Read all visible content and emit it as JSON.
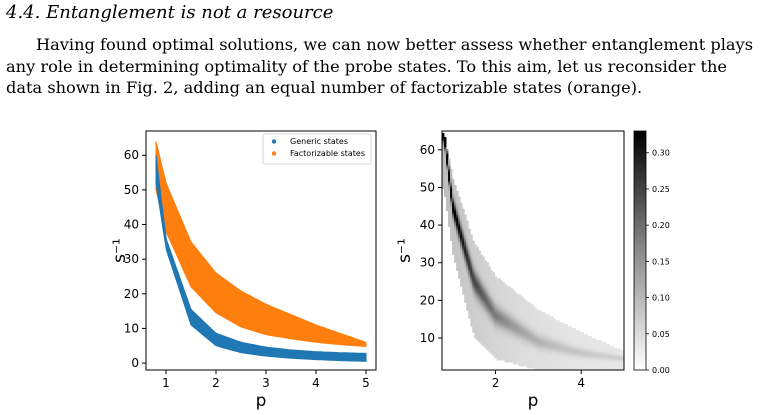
{
  "heading": {
    "number": "4.4.",
    "title": "Entanglement is not a resource"
  },
  "paragraph": {
    "lines": [
      "Having found optimal solutions, we can now better assess whether entanglement plays",
      "any role in determining optimality of the probe states. To this aim, let us reconsider the",
      "data shown in Fig. 2, adding an equal number of factorizable states (orange)."
    ]
  },
  "colors": {
    "generic": "#1f77b4",
    "factorizable": "#ff7f0e"
  },
  "chart_data": [
    {
      "type": "area",
      "title": "",
      "xlabel": "p",
      "ylabel": "s⁻¹",
      "xlim": [
        0.6,
        5.2
      ],
      "ylim": [
        -2,
        67
      ],
      "xticks": [
        "1",
        "2",
        "3",
        "4",
        "5"
      ],
      "yticks": [
        "0",
        "10",
        "20",
        "30",
        "40",
        "50",
        "60"
      ],
      "grid": false,
      "legend_position": "top-right",
      "x_range": [
        0.8,
        5.0
      ],
      "series": [
        {
          "name": "Factorizable states",
          "color": "#ff7f0e",
          "x": [
            0.8,
            1.0,
            1.5,
            2.0,
            2.5,
            3.0,
            3.5,
            4.0,
            4.5,
            5.0
          ],
          "lower": [
            50.0,
            38.0,
            22.0,
            14.5,
            10.4,
            8.2,
            7.0,
            6.0,
            5.3,
            4.8
          ],
          "upper": [
            64.0,
            52.0,
            35.0,
            26.0,
            20.8,
            17.0,
            14.0,
            11.0,
            8.5,
            6.0
          ]
        },
        {
          "name": "Generic states",
          "color": "#1f77b4",
          "x": [
            0.8,
            1.0,
            1.5,
            2.0,
            2.5,
            3.0,
            3.5,
            4.0,
            4.5,
            5.0
          ],
          "lower": [
            52.0,
            33.0,
            11.0,
            5.0,
            3.0,
            2.0,
            1.4,
            1.0,
            0.7,
            0.5
          ],
          "upper": [
            60.0,
            36.0,
            15.5,
            8.6,
            6.0,
            4.6,
            3.8,
            3.3,
            3.0,
            2.8
          ]
        }
      ]
    },
    {
      "type": "heatmap",
      "title": "",
      "xlabel": "p",
      "ylabel": "s⁻¹",
      "xlim": [
        0.75,
        5.0
      ],
      "ylim": [
        1.5,
        65
      ],
      "xticks": [
        "2",
        "4"
      ],
      "yticks": [
        "10",
        "20",
        "30",
        "40",
        "50",
        "60"
      ],
      "colorbar": {
        "min": 0.0,
        "max": 0.33,
        "ticks": [
          "0.00",
          "0.05",
          "0.10",
          "0.15",
          "0.20",
          "0.25",
          "0.30"
        ],
        "colormap": "Greys"
      },
      "x_range": [
        0.75,
        5.0
      ],
      "ridge": {
        "x": [
          0.8,
          1.0,
          1.5,
          2.0,
          3.0,
          4.0,
          5.0
        ],
        "y": [
          64.0,
          45.0,
          25.0,
          16.0,
          9.0,
          6.0,
          4.5
        ]
      },
      "spread": {
        "x": [
          0.8,
          1.0,
          1.5,
          2.0,
          3.0,
          4.0,
          5.0
        ],
        "lower": [
          50.0,
          33.0,
          11.0,
          5.0,
          2.0,
          1.0,
          0.5
        ],
        "upper": [
          64.0,
          52.0,
          35.0,
          26.0,
          17.0,
          11.0,
          6.0
        ]
      }
    }
  ]
}
